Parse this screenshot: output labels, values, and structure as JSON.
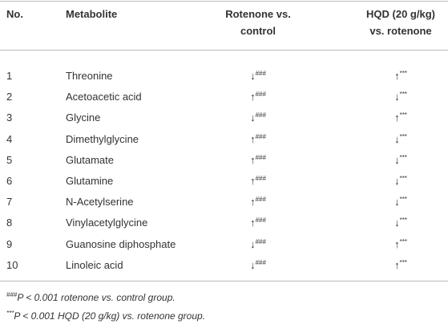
{
  "header": {
    "cells": [
      {
        "lines": [
          "No."
        ]
      },
      {
        "lines": [
          "Metabolite"
        ]
      },
      {
        "lines": [
          "Rotenone vs.",
          "control"
        ]
      },
      {
        "lines": [
          "HQD (20 g/kg)",
          "vs. rotenone"
        ]
      }
    ]
  },
  "table": {
    "rows": [
      [
        "1",
        "Threonine",
        "↓",
        "###",
        "↑",
        "***"
      ],
      [
        "2",
        "Acetoacetic acid",
        "↑",
        "###",
        "↓",
        "***"
      ],
      [
        "3",
        "Glycine",
        "↓",
        "###",
        "↑",
        "***"
      ],
      [
        "4",
        "Dimethylglycine",
        "↑",
        "###",
        "↓",
        "***"
      ],
      [
        "5",
        "Glutamate",
        "↑",
        "###",
        "↓",
        "***"
      ],
      [
        "6",
        "Glutamine",
        "↑",
        "###",
        "↓",
        "***"
      ],
      [
        "7",
        "N-Acetylserine",
        "↑",
        "###",
        "↓",
        "***"
      ],
      [
        "8",
        "Vinylacetylglycine",
        "↑",
        "###",
        "↓",
        "***"
      ],
      [
        "9",
        "Guanosine diphosphate",
        "↓",
        "###",
        "↑",
        "***"
      ],
      [
        "10",
        "Linoleic acid",
        "↓",
        "###",
        "↑",
        "***"
      ]
    ]
  },
  "footnotes": [
    {
      "mark": "###",
      "text": "P < 0.001 rotenone vs. control group."
    },
    {
      "mark": "***",
      "text": "P < 0.001 HQD (20 g/kg) vs. rotenone group."
    }
  ]
}
